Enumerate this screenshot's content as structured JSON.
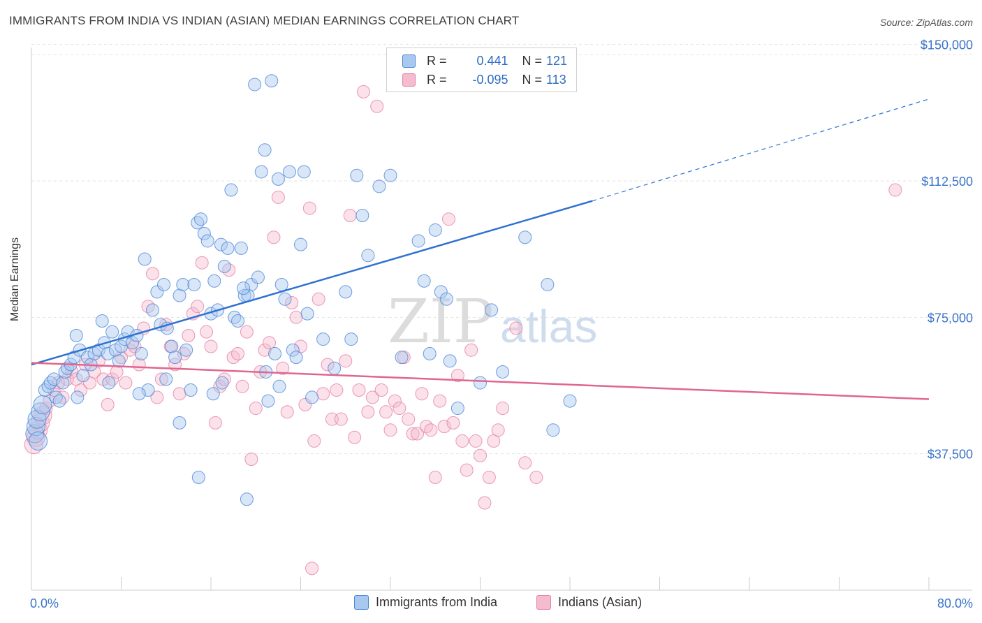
{
  "header": {
    "title": "IMMIGRANTS FROM INDIA VS INDIAN (ASIAN) MEDIAN EARNINGS CORRELATION CHART",
    "source": "Source: ZipAtlas.com"
  },
  "watermark": {
    "zip": "ZIP",
    "atlas": "atlas"
  },
  "legend": {
    "series1": {
      "r_label": "R =",
      "r_value": "0.441",
      "n_label": "N =",
      "n_value": "121"
    },
    "series2": {
      "r_label": "R =",
      "r_value": "-0.095",
      "n_label": "N =",
      "n_value": "113"
    }
  },
  "bottom_legend": {
    "series1": "Immigrants from India",
    "series2": "Indians (Asian)"
  },
  "colors": {
    "blue_fill": "#a9c8ef",
    "blue_stroke": "#4a86d6",
    "blue_line": "#2f72d0",
    "pink_fill": "#f5bcd0",
    "pink_stroke": "#e67fa3",
    "pink_line": "#e0668f",
    "axis_label": "#3b74c9"
  },
  "chart_data": {
    "type": "scatter",
    "title": "IMMIGRANTS FROM INDIA VS INDIAN (ASIAN) MEDIAN EARNINGS CORRELATION CHART",
    "xlabel": "",
    "ylabel": "Median Earnings",
    "xlim": [
      0,
      80
    ],
    "ylim": [
      0,
      158000
    ],
    "x_tick_labels": [
      "0.0%",
      "80.0%"
    ],
    "y_ticks": [
      37500,
      75000,
      112500,
      150000
    ],
    "y_tick_labels": [
      "$37,500",
      "$75,000",
      "$112,500",
      "$150,000"
    ],
    "grid": true,
    "legend_position": "top-center",
    "series": [
      {
        "name": "Immigrants from India",
        "color": "#4a86d6",
        "r": 0.441,
        "n": 121,
        "trend": {
          "x": [
            0,
            50
          ],
          "y": [
            62000,
            107000
          ],
          "dashed_to": [
            80,
            135000
          ]
        },
        "points": [
          [
            0.3,
            43000
          ],
          [
            0.4,
            45000
          ],
          [
            0.5,
            47000
          ],
          [
            0.6,
            41000
          ],
          [
            0.8,
            49000
          ],
          [
            1.0,
            51000
          ],
          [
            1.2,
            55000
          ],
          [
            1.5,
            56000
          ],
          [
            1.7,
            57000
          ],
          [
            2.0,
            58000
          ],
          [
            2.2,
            53000
          ],
          [
            2.5,
            52000
          ],
          [
            2.8,
            57000
          ],
          [
            3.0,
            60000
          ],
          [
            3.2,
            61000
          ],
          [
            3.5,
            62000
          ],
          [
            3.8,
            64000
          ],
          [
            4.0,
            70000
          ],
          [
            4.3,
            66000
          ],
          [
            4.6,
            59000
          ],
          [
            5.0,
            64000
          ],
          [
            5.3,
            62000
          ],
          [
            5.6,
            65000
          ],
          [
            6.0,
            66000
          ],
          [
            6.3,
            74000
          ],
          [
            6.5,
            68000
          ],
          [
            6.8,
            65000
          ],
          [
            7.2,
            71000
          ],
          [
            7.5,
            66000
          ],
          [
            7.8,
            63000
          ],
          [
            8.0,
            67000
          ],
          [
            8.3,
            69000
          ],
          [
            8.6,
            71000
          ],
          [
            9.0,
            68000
          ],
          [
            9.4,
            70000
          ],
          [
            9.8,
            65000
          ],
          [
            10.1,
            91000
          ],
          [
            10.4,
            55000
          ],
          [
            10.8,
            77000
          ],
          [
            11.2,
            82000
          ],
          [
            11.5,
            73000
          ],
          [
            11.8,
            84000
          ],
          [
            12.1,
            72000
          ],
          [
            12.5,
            67000
          ],
          [
            12.8,
            64000
          ],
          [
            13.2,
            81000
          ],
          [
            13.5,
            84000
          ],
          [
            13.8,
            66000
          ],
          [
            14.2,
            55000
          ],
          [
            14.5,
            84000
          ],
          [
            14.8,
            101000
          ],
          [
            15.1,
            102000
          ],
          [
            15.4,
            98000
          ],
          [
            15.7,
            96000
          ],
          [
            16.0,
            76000
          ],
          [
            16.3,
            85000
          ],
          [
            16.6,
            77000
          ],
          [
            16.9,
            95000
          ],
          [
            17.2,
            89000
          ],
          [
            17.5,
            94000
          ],
          [
            17.8,
            110000
          ],
          [
            18.1,
            75000
          ],
          [
            18.4,
            74000
          ],
          [
            18.7,
            94000
          ],
          [
            19.0,
            81000
          ],
          [
            19.3,
            81000
          ],
          [
            19.6,
            84000
          ],
          [
            19.9,
            139000
          ],
          [
            20.2,
            86000
          ],
          [
            20.5,
            115000
          ],
          [
            20.8,
            121000
          ],
          [
            21.1,
            52000
          ],
          [
            21.4,
            140000
          ],
          [
            21.7,
            65000
          ],
          [
            22.0,
            113000
          ],
          [
            22.3,
            84000
          ],
          [
            22.6,
            80000
          ],
          [
            23.0,
            115000
          ],
          [
            23.3,
            66000
          ],
          [
            23.6,
            64000
          ],
          [
            24.0,
            95000
          ],
          [
            24.3,
            115000
          ],
          [
            24.6,
            76000
          ],
          [
            25.0,
            53000
          ],
          [
            26.0,
            69000
          ],
          [
            27.0,
            61000
          ],
          [
            28.0,
            82000
          ],
          [
            28.5,
            69000
          ],
          [
            29.0,
            114000
          ],
          [
            29.5,
            103000
          ],
          [
            30.0,
            92000
          ],
          [
            31.0,
            111000
          ],
          [
            32.0,
            114000
          ],
          [
            33.0,
            64000
          ],
          [
            34.5,
            96000
          ],
          [
            35.0,
            85000
          ],
          [
            35.5,
            65000
          ],
          [
            36.0,
            99000
          ],
          [
            36.5,
            82000
          ],
          [
            37.0,
            80000
          ],
          [
            37.3,
            63000
          ],
          [
            38.0,
            50000
          ],
          [
            40.0,
            57000
          ],
          [
            41.0,
            77000
          ],
          [
            42.0,
            60000
          ],
          [
            44.0,
            97000
          ],
          [
            46.0,
            84000
          ],
          [
            46.5,
            44000
          ],
          [
            48.0,
            52000
          ],
          [
            6.9,
            57000
          ],
          [
            9.6,
            54000
          ],
          [
            13.2,
            46000
          ],
          [
            14.9,
            31000
          ],
          [
            16.2,
            54000
          ],
          [
            17.0,
            57000
          ],
          [
            18.9,
            83000
          ],
          [
            19.2,
            25000
          ],
          [
            20.9,
            60000
          ],
          [
            22.1,
            56000
          ],
          [
            12.0,
            58000
          ],
          [
            4.1,
            53000
          ]
        ]
      },
      {
        "name": "Indians (Asian)",
        "color": "#e67fa3",
        "r": -0.095,
        "n": 113,
        "trend": {
          "x": [
            0,
            80
          ],
          "y": [
            62500,
            52500
          ]
        },
        "points": [
          [
            0.2,
            40000
          ],
          [
            0.4,
            42000
          ],
          [
            0.6,
            44000
          ],
          [
            0.8,
            46000
          ],
          [
            1.0,
            48000
          ],
          [
            1.3,
            50000
          ],
          [
            1.6,
            52000
          ],
          [
            2.0,
            55000
          ],
          [
            2.4,
            57000
          ],
          [
            2.8,
            53000
          ],
          [
            3.2,
            58000
          ],
          [
            3.6,
            60000
          ],
          [
            4.0,
            58000
          ],
          [
            4.4,
            55000
          ],
          [
            4.8,
            62000
          ],
          [
            5.2,
            57000
          ],
          [
            5.6,
            60000
          ],
          [
            6.0,
            63000
          ],
          [
            6.4,
            58000
          ],
          [
            6.8,
            51000
          ],
          [
            7.2,
            58000
          ],
          [
            7.6,
            60000
          ],
          [
            8.0,
            64000
          ],
          [
            8.4,
            57000
          ],
          [
            8.8,
            66000
          ],
          [
            9.2,
            67000
          ],
          [
            9.6,
            62000
          ],
          [
            10.0,
            72000
          ],
          [
            10.4,
            78000
          ],
          [
            10.8,
            87000
          ],
          [
            11.2,
            53000
          ],
          [
            11.6,
            58000
          ],
          [
            12.0,
            73000
          ],
          [
            12.4,
            67000
          ],
          [
            12.8,
            62000
          ],
          [
            13.2,
            54000
          ],
          [
            13.6,
            65000
          ],
          [
            14.0,
            70000
          ],
          [
            14.4,
            76000
          ],
          [
            14.8,
            78000
          ],
          [
            15.2,
            90000
          ],
          [
            15.6,
            71000
          ],
          [
            16.0,
            67000
          ],
          [
            16.4,
            46000
          ],
          [
            16.8,
            56000
          ],
          [
            17.2,
            58000
          ],
          [
            17.6,
            88000
          ],
          [
            18.0,
            64000
          ],
          [
            18.4,
            65000
          ],
          [
            18.8,
            56000
          ],
          [
            19.2,
            71000
          ],
          [
            19.6,
            36000
          ],
          [
            20.0,
            50000
          ],
          [
            20.4,
            60000
          ],
          [
            20.8,
            66000
          ],
          [
            21.2,
            68000
          ],
          [
            21.6,
            97000
          ],
          [
            22.0,
            108000
          ],
          [
            22.4,
            61000
          ],
          [
            22.8,
            49000
          ],
          [
            23.2,
            79000
          ],
          [
            23.6,
            75000
          ],
          [
            24.0,
            67000
          ],
          [
            24.4,
            51000
          ],
          [
            24.8,
            105000
          ],
          [
            25.2,
            41000
          ],
          [
            25.6,
            80000
          ],
          [
            26.0,
            54000
          ],
          [
            26.4,
            62000
          ],
          [
            26.8,
            47000
          ],
          [
            27.2,
            55000
          ],
          [
            27.6,
            47000
          ],
          [
            28.0,
            63000
          ],
          [
            28.4,
            103000
          ],
          [
            28.8,
            42000
          ],
          [
            29.2,
            55000
          ],
          [
            29.6,
            137000
          ],
          [
            30.0,
            49000
          ],
          [
            30.4,
            53000
          ],
          [
            30.8,
            133000
          ],
          [
            31.2,
            55000
          ],
          [
            31.6,
            49000
          ],
          [
            32.0,
            44000
          ],
          [
            32.4,
            52000
          ],
          [
            32.8,
            50000
          ],
          [
            33.2,
            64000
          ],
          [
            33.6,
            47000
          ],
          [
            34.0,
            43000
          ],
          [
            34.4,
            43000
          ],
          [
            34.8,
            54000
          ],
          [
            35.2,
            45000
          ],
          [
            35.6,
            44000
          ],
          [
            36.0,
            31000
          ],
          [
            36.4,
            52000
          ],
          [
            36.8,
            45000
          ],
          [
            37.2,
            102000
          ],
          [
            37.6,
            46000
          ],
          [
            38.0,
            59000
          ],
          [
            38.4,
            41000
          ],
          [
            38.8,
            33000
          ],
          [
            39.2,
            66000
          ],
          [
            39.6,
            41000
          ],
          [
            40.0,
            37000
          ],
          [
            40.4,
            24000
          ],
          [
            40.8,
            31000
          ],
          [
            41.2,
            41000
          ],
          [
            41.6,
            44000
          ],
          [
            42.0,
            50000
          ],
          [
            43.2,
            72000
          ],
          [
            44.0,
            35000
          ],
          [
            45.0,
            31000
          ],
          [
            25.0,
            6000
          ],
          [
            77.0,
            110000
          ]
        ]
      }
    ]
  }
}
